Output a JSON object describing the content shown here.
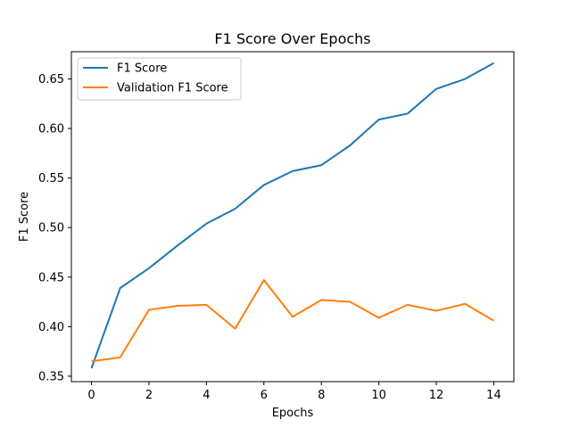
{
  "colors": {
    "series_1": "#1f77b4",
    "series_2": "#ff7f0e",
    "axes": "#000000",
    "background": "#ffffff"
  },
  "chart_data": {
    "type": "line",
    "title": "F1 Score Over Epochs",
    "xlabel": "Epochs",
    "ylabel": "F1 Score",
    "xlim": [
      -0.7,
      14.7
    ],
    "ylim": [
      0.3445,
      0.6775
    ],
    "xticks": [
      0,
      2,
      4,
      6,
      8,
      10,
      12,
      14
    ],
    "xtick_labels": [
      "0",
      "2",
      "4",
      "6",
      "8",
      "10",
      "12",
      "14"
    ],
    "yticks": [
      0.35,
      0.4,
      0.45,
      0.5,
      0.55,
      0.6,
      0.65
    ],
    "ytick_labels": [
      "0.35",
      "0.40",
      "0.45",
      "0.50",
      "0.55",
      "0.60",
      "0.65"
    ],
    "grid": false,
    "legend_position": "upper-left",
    "x": [
      0,
      1,
      2,
      3,
      4,
      5,
      6,
      7,
      8,
      9,
      10,
      11,
      12,
      13,
      14
    ],
    "series": [
      {
        "name": "F1 Score",
        "color": "#1f77b4",
        "values": [
          0.358,
          0.439,
          0.459,
          0.482,
          0.504,
          0.519,
          0.543,
          0.557,
          0.563,
          0.583,
          0.609,
          0.615,
          0.64,
          0.65,
          0.666
        ]
      },
      {
        "name": "Validation F1 Score",
        "color": "#ff7f0e",
        "values": [
          0.365,
          0.369,
          0.417,
          0.421,
          0.422,
          0.398,
          0.447,
          0.41,
          0.427,
          0.425,
          0.409,
          0.422,
          0.416,
          0.423,
          0.406
        ]
      }
    ]
  }
}
